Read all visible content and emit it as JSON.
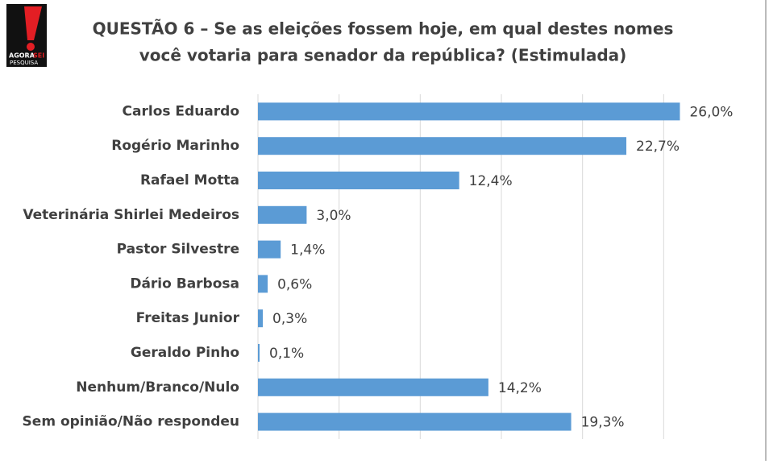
{
  "logo": {
    "brand_1": "AGORA",
    "brand_2": "SEI",
    "brand_3": "PESQUISA"
  },
  "chart_data": {
    "type": "hbar",
    "title": [
      "QUESTÃO 6 – Se as eleições fossem hoje, em qual destes nomes",
      "você votaria para senador da república? (Estimulada)"
    ],
    "categories": [
      "Carlos Eduardo",
      "Rogério Marinho",
      "Rafael Motta",
      "Veterinária Shirlei Medeiros",
      "Pastor Silvestre",
      "Dário Barbosa",
      "Freitas Junior",
      "Geraldo Pinho",
      "Nenhum/Branco/Nulo",
      "Sem opinião/Não respondeu"
    ],
    "values": [
      26.0,
      22.7,
      12.4,
      3.0,
      1.4,
      0.6,
      0.3,
      0.1,
      14.2,
      19.3
    ],
    "value_labels": [
      "26,0%",
      "22,7%",
      "12,4%",
      "3,0%",
      "1,4%",
      "0,6%",
      "0,3%",
      "0,1%",
      "14,2%",
      "19,3%"
    ],
    "color": "#5b9bd5",
    "xlim": [
      0,
      30
    ],
    "xticks": [
      0,
      5,
      10,
      15,
      20,
      25
    ],
    "grid": true
  }
}
